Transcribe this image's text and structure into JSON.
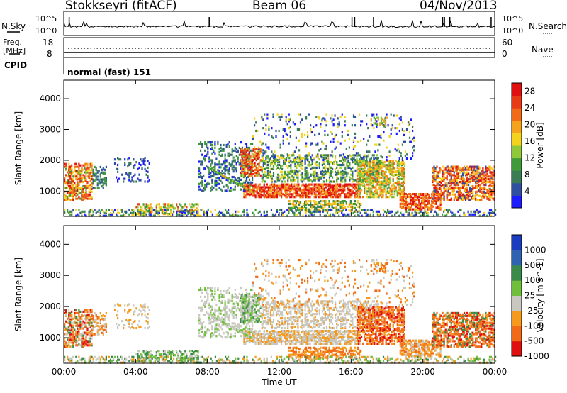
{
  "header": {
    "station": "Stokkseyri (fitACF)",
    "beam": "Beam 06",
    "date": "04/Nov/2013"
  },
  "noise_panel": {
    "left_label": "N.Sky",
    "right_label": "N.Search",
    "left_ticks": [
      "10^5",
      "10^0"
    ],
    "right_ticks": [
      "10^5",
      "10^0"
    ]
  },
  "freq_panel": {
    "left_label_line1": "Freq.",
    "left_label_line2": "[MHz]",
    "left_ticks": [
      "18",
      "8"
    ],
    "right_ticks": [
      "60",
      "0"
    ],
    "right_label": "Nave",
    "cpid_label": "CPID",
    "cpid_value": "normal (fast) 151"
  },
  "colors": {
    "power_scale": [
      "#1c1cff",
      "#2f4fa0",
      "#3a7d55",
      "#3f9b3a",
      "#8fc93a",
      "#f5d21d",
      "#f5a21d",
      "#f06a18",
      "#e83a15",
      "#e01010"
    ],
    "velocity_scale": [
      "#1a3cbf",
      "#2f62b0",
      "#3a8a4a",
      "#6fbf3a",
      "#c8c8c0",
      "#f59a1d",
      "#f06a18",
      "#e01010"
    ]
  },
  "chart_data": [
    {
      "type": "heatmap",
      "name": "power",
      "ylabel": "Slant Range [km]",
      "xlabel": "",
      "xticks": [
        "00:00",
        "04:00",
        "08:00",
        "12:00",
        "16:00",
        "20:00",
        "00:00"
      ],
      "x_range_hours": [
        0,
        24
      ],
      "yticks": [
        "1000",
        "2000",
        "3000",
        "4000"
      ],
      "ylim": [
        180,
        4600
      ],
      "colorbar_label": "Power [dB]",
      "colorbar_ticks": [
        "4",
        "8",
        "12",
        "16",
        "20",
        "24",
        "28"
      ],
      "colorbar_range": [
        0,
        30
      ]
    },
    {
      "type": "heatmap",
      "name": "velocity",
      "ylabel": "Slant Range [km]",
      "xlabel": "Time UT",
      "xticks": [
        "00:00",
        "04:00",
        "08:00",
        "12:00",
        "16:00",
        "20:00",
        "00:00"
      ],
      "x_range_hours": [
        0,
        24
      ],
      "yticks": [
        "1000",
        "2000",
        "3000",
        "4000"
      ],
      "ylim": [
        180,
        4600
      ],
      "colorbar_label": "Velocity [m s^-1]",
      "colorbar_ticks": [
        "1000",
        "500",
        "100",
        "25",
        "-25",
        "-100",
        "-500",
        "-1000"
      ]
    }
  ]
}
